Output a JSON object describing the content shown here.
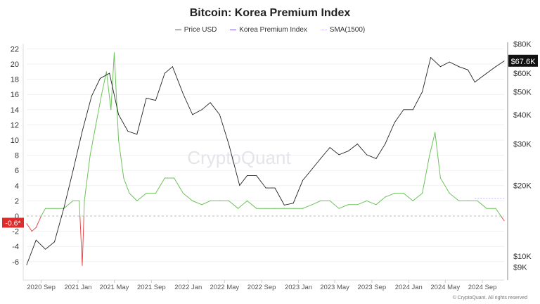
{
  "chart_data": {
    "type": "line",
    "title": "Bitcoin: Korea Premium Index",
    "legend": [
      "Price USD",
      "Korea Premium Index",
      "SMA(1500)"
    ],
    "legend_placement": "top",
    "colors": {
      "price": "#222222",
      "legend_premium": "#6b5bff",
      "sma": "#b9b3ff",
      "premium_positive": "#6cc35a",
      "premium_negative": "#e44b4b",
      "current_value_label_price": "#111111",
      "current_value_label_premium": "#e02b2b"
    },
    "left_axis": {
      "ticks": [
        -6,
        -4,
        -2,
        0,
        2,
        4,
        6,
        8,
        10,
        12,
        14,
        16,
        18,
        20,
        22
      ],
      "range": [
        -7.5,
        23
      ]
    },
    "right_axis": {
      "scale": "log",
      "ticks": [
        "$9K",
        "$10K",
        "$20K",
        "$30K",
        "$40K",
        "$50K",
        "$60K",
        "$80K"
      ],
      "tick_values": [
        9000,
        10000,
        20000,
        30000,
        40000,
        50000,
        60000,
        80000
      ],
      "range": [
        8300,
        82000
      ]
    },
    "x_ticks": [
      "2020 Sep",
      "2021 Jan",
      "2021 May",
      "2021 Sep",
      "2022 Jan",
      "2022 May",
      "2022 Sep",
      "2023 Jan",
      "2023 May",
      "2023 Sep",
      "2024 Jan",
      "2024 May",
      "2024 Sep"
    ],
    "x_tick_dates": [
      "2020-09-01",
      "2021-01-01",
      "2021-05-01",
      "2021-09-01",
      "2022-01-01",
      "2022-05-01",
      "2022-09-01",
      "2023-01-01",
      "2023-05-01",
      "2023-09-01",
      "2024-01-01",
      "2024-05-01",
      "2024-09-01"
    ],
    "x_range": [
      "2020-07-15",
      "2024-11-12"
    ],
    "grid": "horizontal",
    "price_series": {
      "name": "Price USD",
      "dates": [
        "2020-07-15",
        "2020-08-15",
        "2020-09-15",
        "2020-10-15",
        "2020-11-15",
        "2020-12-15",
        "2021-01-15",
        "2021-02-15",
        "2021-03-15",
        "2021-04-15",
        "2021-05-15",
        "2021-06-15",
        "2021-07-15",
        "2021-08-15",
        "2021-09-15",
        "2021-10-15",
        "2021-11-10",
        "2021-12-15",
        "2022-01-15",
        "2022-02-15",
        "2022-03-15",
        "2022-04-15",
        "2022-05-15",
        "2022-06-20",
        "2022-07-15",
        "2022-08-15",
        "2022-09-15",
        "2022-10-15",
        "2022-11-15",
        "2022-12-15",
        "2023-01-15",
        "2023-02-15",
        "2023-03-15",
        "2023-04-15",
        "2023-05-15",
        "2023-06-15",
        "2023-07-15",
        "2023-08-15",
        "2023-09-15",
        "2023-10-15",
        "2023-11-15",
        "2023-12-15",
        "2024-01-15",
        "2024-02-15",
        "2024-03-14",
        "2024-04-15",
        "2024-05-15",
        "2024-06-15",
        "2024-07-15",
        "2024-08-07",
        "2024-09-15",
        "2024-10-15",
        "2024-11-12"
      ],
      "values": [
        9200,
        11700,
        10700,
        11500,
        16000,
        23000,
        34000,
        48000,
        57000,
        60000,
        40000,
        34000,
        33000,
        47000,
        46000,
        60000,
        64000,
        49000,
        40000,
        42000,
        45000,
        40000,
        30000,
        20000,
        22000,
        22000,
        19500,
        19500,
        16500,
        16800,
        21000,
        23500,
        26000,
        29000,
        27000,
        28000,
        30000,
        27000,
        26000,
        30000,
        37000,
        42000,
        42000,
        50000,
        70000,
        64000,
        67000,
        64000,
        62000,
        55000,
        60000,
        64000,
        67600
      ]
    },
    "premium_series": {
      "name": "Korea Premium Index",
      "dates": [
        "2020-07-15",
        "2020-08-01",
        "2020-08-15",
        "2020-09-01",
        "2020-09-15",
        "2020-10-15",
        "2020-11-15",
        "2020-12-15",
        "2021-01-05",
        "2021-01-15",
        "2021-01-22",
        "2021-02-10",
        "2021-03-01",
        "2021-03-20",
        "2021-04-05",
        "2021-04-20",
        "2021-05-01",
        "2021-05-15",
        "2021-06-01",
        "2021-06-20",
        "2021-07-15",
        "2021-08-15",
        "2021-09-15",
        "2021-10-15",
        "2021-11-15",
        "2021-12-15",
        "2022-01-15",
        "2022-02-15",
        "2022-03-15",
        "2022-04-15",
        "2022-05-15",
        "2022-06-15",
        "2022-07-15",
        "2022-08-15",
        "2022-09-15",
        "2022-10-15",
        "2022-11-15",
        "2022-12-15",
        "2023-01-15",
        "2023-02-15",
        "2023-03-15",
        "2023-04-15",
        "2023-05-15",
        "2023-06-15",
        "2023-07-15",
        "2023-08-15",
        "2023-09-15",
        "2023-10-15",
        "2023-11-15",
        "2023-12-15",
        "2024-01-15",
        "2024-02-15",
        "2024-03-10",
        "2024-03-28",
        "2024-04-15",
        "2024-05-15",
        "2024-06-15",
        "2024-07-15",
        "2024-08-15",
        "2024-09-15",
        "2024-10-15",
        "2024-11-12"
      ],
      "values": [
        -1,
        -2,
        -1.5,
        0,
        1,
        1,
        1,
        2,
        2,
        -6.5,
        2,
        8,
        12,
        16,
        19,
        14,
        21.5,
        10,
        5,
        3,
        2,
        3,
        3,
        5,
        5,
        3,
        2,
        1.5,
        2,
        2,
        2,
        1,
        2,
        1,
        1,
        1,
        1,
        1,
        1,
        1.5,
        2,
        2,
        1,
        1.5,
        1.5,
        2,
        1.5,
        2.5,
        3,
        3,
        2,
        3,
        8,
        11,
        5,
        3,
        2,
        2,
        2,
        1,
        1,
        -0.6
      ]
    },
    "sma_series": {
      "name": "SMA(1500)",
      "dates": [
        "2024-08-07",
        "2024-11-12"
      ],
      "values": [
        2.3,
        2.3
      ]
    },
    "current_labels": {
      "price": "$67.6K",
      "premium": "-0.6*"
    },
    "watermark": "CryptoQuant",
    "footer": "© CryptoQuant. All rights reserved"
  }
}
